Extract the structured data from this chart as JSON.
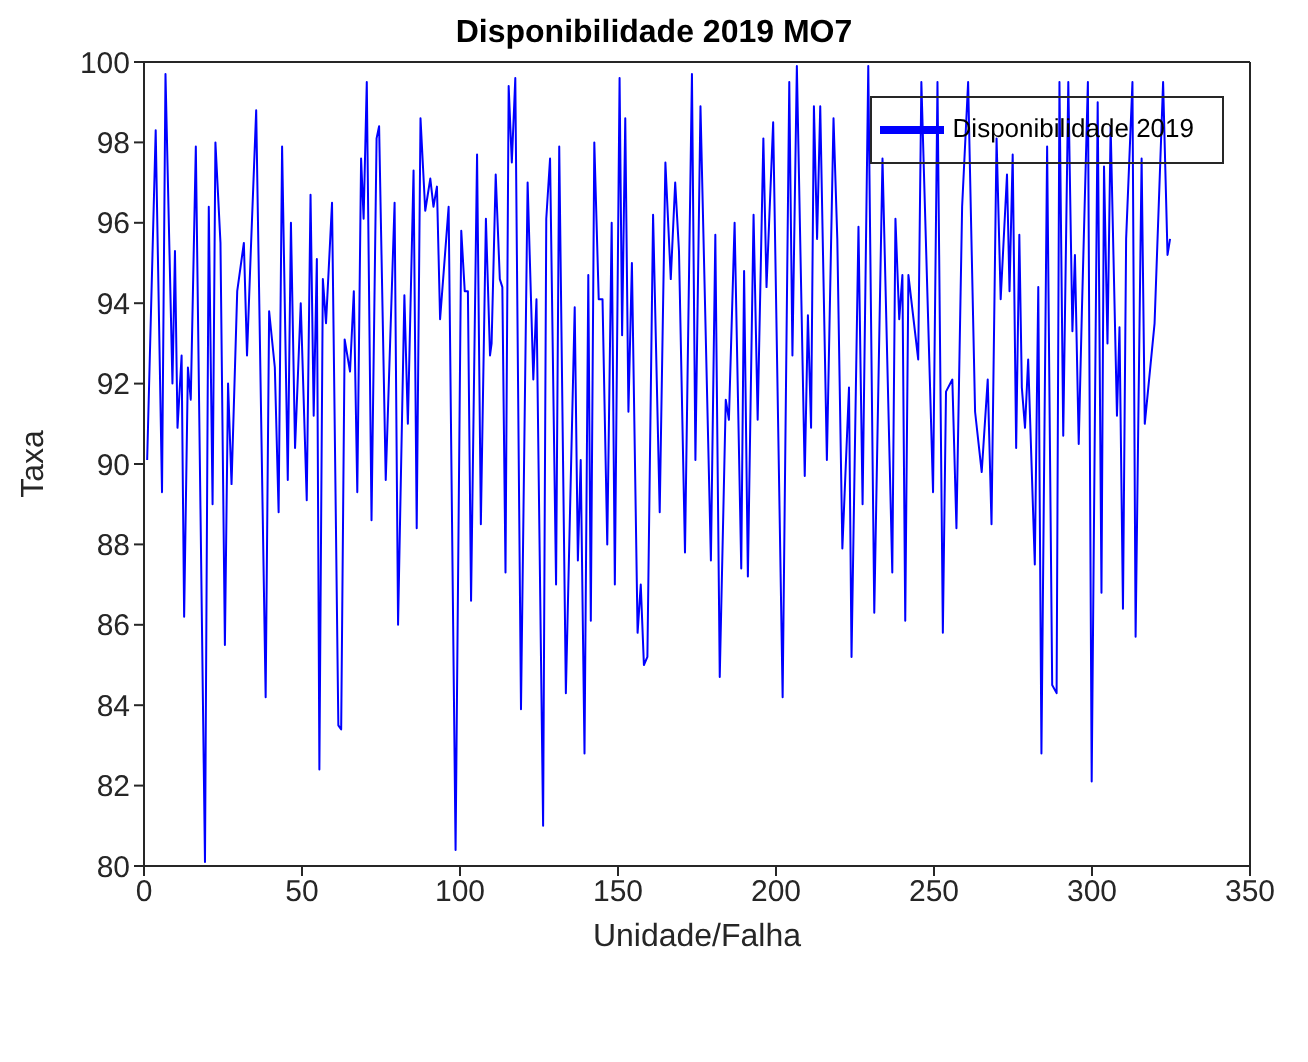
{
  "chart_data": {
    "type": "line",
    "title": "Disponibilidade 2019 MO7",
    "xlabel": "Unidade/Falha",
    "ylabel": "Taxa",
    "xlim": [
      0,
      350
    ],
    "xticks": [
      0,
      50,
      100,
      150,
      200,
      250,
      300,
      350
    ],
    "ylim": [
      80,
      100
    ],
    "yticks": [
      80,
      82,
      84,
      86,
      88,
      90,
      92,
      94,
      96,
      98,
      100
    ],
    "grid": false,
    "legend": "top right",
    "marker": "none",
    "line_style": "solid",
    "series": [
      {
        "name": "Disponibilidade 2019",
        "color": "#0000ff",
        "x": [
          1,
          3.7,
          5.7,
          6.8,
          9,
          9.8,
          10.6,
          11.9,
          12.7,
          13.9,
          14.8,
          16.4,
          19.3,
          20.5,
          21.7,
          22.6,
          24.2,
          25.6,
          26.6,
          27.7,
          29.5,
          31.6,
          32.6,
          33.8,
          35.5,
          38.5,
          39.6,
          41.4,
          42.6,
          43.7,
          45.5,
          46.5,
          47.8,
          49.6,
          51.5,
          52.7,
          53.7,
          54.7,
          55.5,
          56.6,
          57.6,
          59.5,
          61.5,
          62.4,
          63.5,
          65.2,
          66.4,
          67.5,
          68.7,
          69.5,
          70.5,
          72,
          73.6,
          74.4,
          76.5,
          79.3,
          80.4,
          82.4,
          83.5,
          85.3,
          86.3,
          87.5,
          89,
          90.6,
          91.6,
          92.7,
          93.7,
          96.4,
          98.6,
          100.4,
          101.5,
          102.5,
          103.5,
          105.4,
          106.6,
          108.2,
          109.5,
          110,
          111.3,
          112.6,
          113.4,
          114.4,
          115.4,
          116.4,
          117.5,
          119.3,
          121.4,
          123.2,
          124.2,
          126.3,
          127.3,
          128.5,
          130.4,
          131.4,
          133.5,
          136.3,
          137.3,
          138.2,
          139.4,
          140.6,
          141.4,
          142.5,
          143.9,
          145.1,
          146.6,
          148,
          149,
          150.5,
          151.3,
          152.3,
          153.3,
          154.4,
          156.2,
          157.2,
          158.2,
          159.3,
          161.1,
          163.2,
          165,
          166.7,
          168.1,
          169.3,
          171.2,
          173.4,
          174.5,
          176.1,
          179.4,
          180.8,
          182.2,
          184.1,
          185.1,
          186.9,
          189,
          189.9,
          191.1,
          192.9,
          194.2,
          196,
          197,
          199.1,
          202.1,
          204.2,
          205.2,
          206.6,
          209.1,
          210.1,
          211.1,
          212,
          213,
          214,
          216.1,
          218.2,
          219.4,
          221,
          223.1,
          223.9,
          226.1,
          227.4,
          229.2,
          231.1,
          233.7,
          236.8,
          237.8,
          239,
          240,
          240.9,
          241.9,
          245,
          246,
          249.7,
          251.1,
          252.8,
          253.8,
          255.8,
          257.1,
          258.9,
          260.8,
          263,
          265.1,
          267,
          268.2,
          269.8,
          271.1,
          273.1,
          273.9,
          274.9,
          276,
          277,
          277.8,
          278.8,
          279.8,
          281.9,
          283,
          284,
          285.8,
          287.4,
          288.8,
          289.7,
          290.9,
          292.5,
          293.8,
          294.6,
          295.8,
          296.8,
          298.7,
          299.9,
          301.8,
          303,
          303.8,
          304.9,
          305.9,
          307.9,
          308.7,
          309.8,
          310.8,
          312.8,
          313.8,
          315.7,
          316.7,
          319.8,
          322.5,
          323.9,
          324.7
        ],
        "values": [
          90.1,
          98.3,
          89.3,
          99.7,
          92,
          95.3,
          90.9,
          92.7,
          86.2,
          92.4,
          91.6,
          97.9,
          80.1,
          96.4,
          89,
          98,
          95.5,
          85.5,
          92,
          89.5,
          94.3,
          95.5,
          92.7,
          95.3,
          98.8,
          84.2,
          93.8,
          92.4,
          88.8,
          97.9,
          89.6,
          96,
          90.4,
          94,
          89.1,
          96.7,
          91.2,
          95.1,
          82.4,
          94.6,
          93.5,
          96.5,
          83.5,
          83.4,
          93.1,
          92.3,
          94.3,
          89.3,
          97.6,
          96.1,
          99.5,
          88.6,
          98.1,
          98.4,
          89.6,
          96.5,
          86,
          94.2,
          91,
          97.3,
          88.4,
          98.6,
          96.3,
          97.1,
          96.4,
          96.9,
          93.6,
          96.4,
          80.4,
          95.8,
          94.3,
          94.3,
          86.6,
          97.7,
          88.5,
          96.1,
          92.7,
          93,
          97.2,
          94.6,
          94.4,
          87.3,
          99.4,
          97.5,
          99.6,
          83.9,
          97,
          92.1,
          94.1,
          81,
          96.1,
          97.6,
          87,
          97.9,
          84.3,
          93.9,
          87.6,
          90.1,
          82.8,
          94.7,
          86.1,
          98,
          94.1,
          94.1,
          88,
          96,
          87,
          99.6,
          93.2,
          98.6,
          91.3,
          95,
          85.8,
          87,
          85,
          85.2,
          96.2,
          88.8,
          97.5,
          94.6,
          97,
          95.3,
          87.8,
          99.7,
          90.1,
          98.9,
          87.6,
          95.7,
          84.7,
          91.6,
          91.1,
          96,
          87.4,
          94.8,
          87.2,
          96.2,
          91.1,
          98.1,
          94.4,
          98.5,
          84.2,
          99.5,
          92.7,
          99.9,
          89.7,
          93.7,
          90.9,
          98.9,
          95.6,
          98.9,
          90.1,
          98.6,
          95.6,
          87.9,
          91.9,
          85.2,
          95.9,
          89,
          99.9,
          86.3,
          97.6,
          87.3,
          96.1,
          93.6,
          94.7,
          86.1,
          94.7,
          92.6,
          99.5,
          89.3,
          99.5,
          85.8,
          91.8,
          92.1,
          88.4,
          96.4,
          99.5,
          91.3,
          89.8,
          92.1,
          88.5,
          98.1,
          94.1,
          97.2,
          94.3,
          97.7,
          90.4,
          95.7,
          91.9,
          90.9,
          92.6,
          87.5,
          94.4,
          82.8,
          97.9,
          84.5,
          84.3,
          99.5,
          90.7,
          99.5,
          93.3,
          95.2,
          90.5,
          93.8,
          99.5,
          82.1,
          99,
          86.8,
          97.4,
          93,
          98.4,
          91.2,
          93.4,
          86.4,
          95.6,
          99.5,
          85.7,
          97.6,
          91,
          93.5,
          99.5,
          95.2,
          95.6
        ]
      }
    ]
  }
}
